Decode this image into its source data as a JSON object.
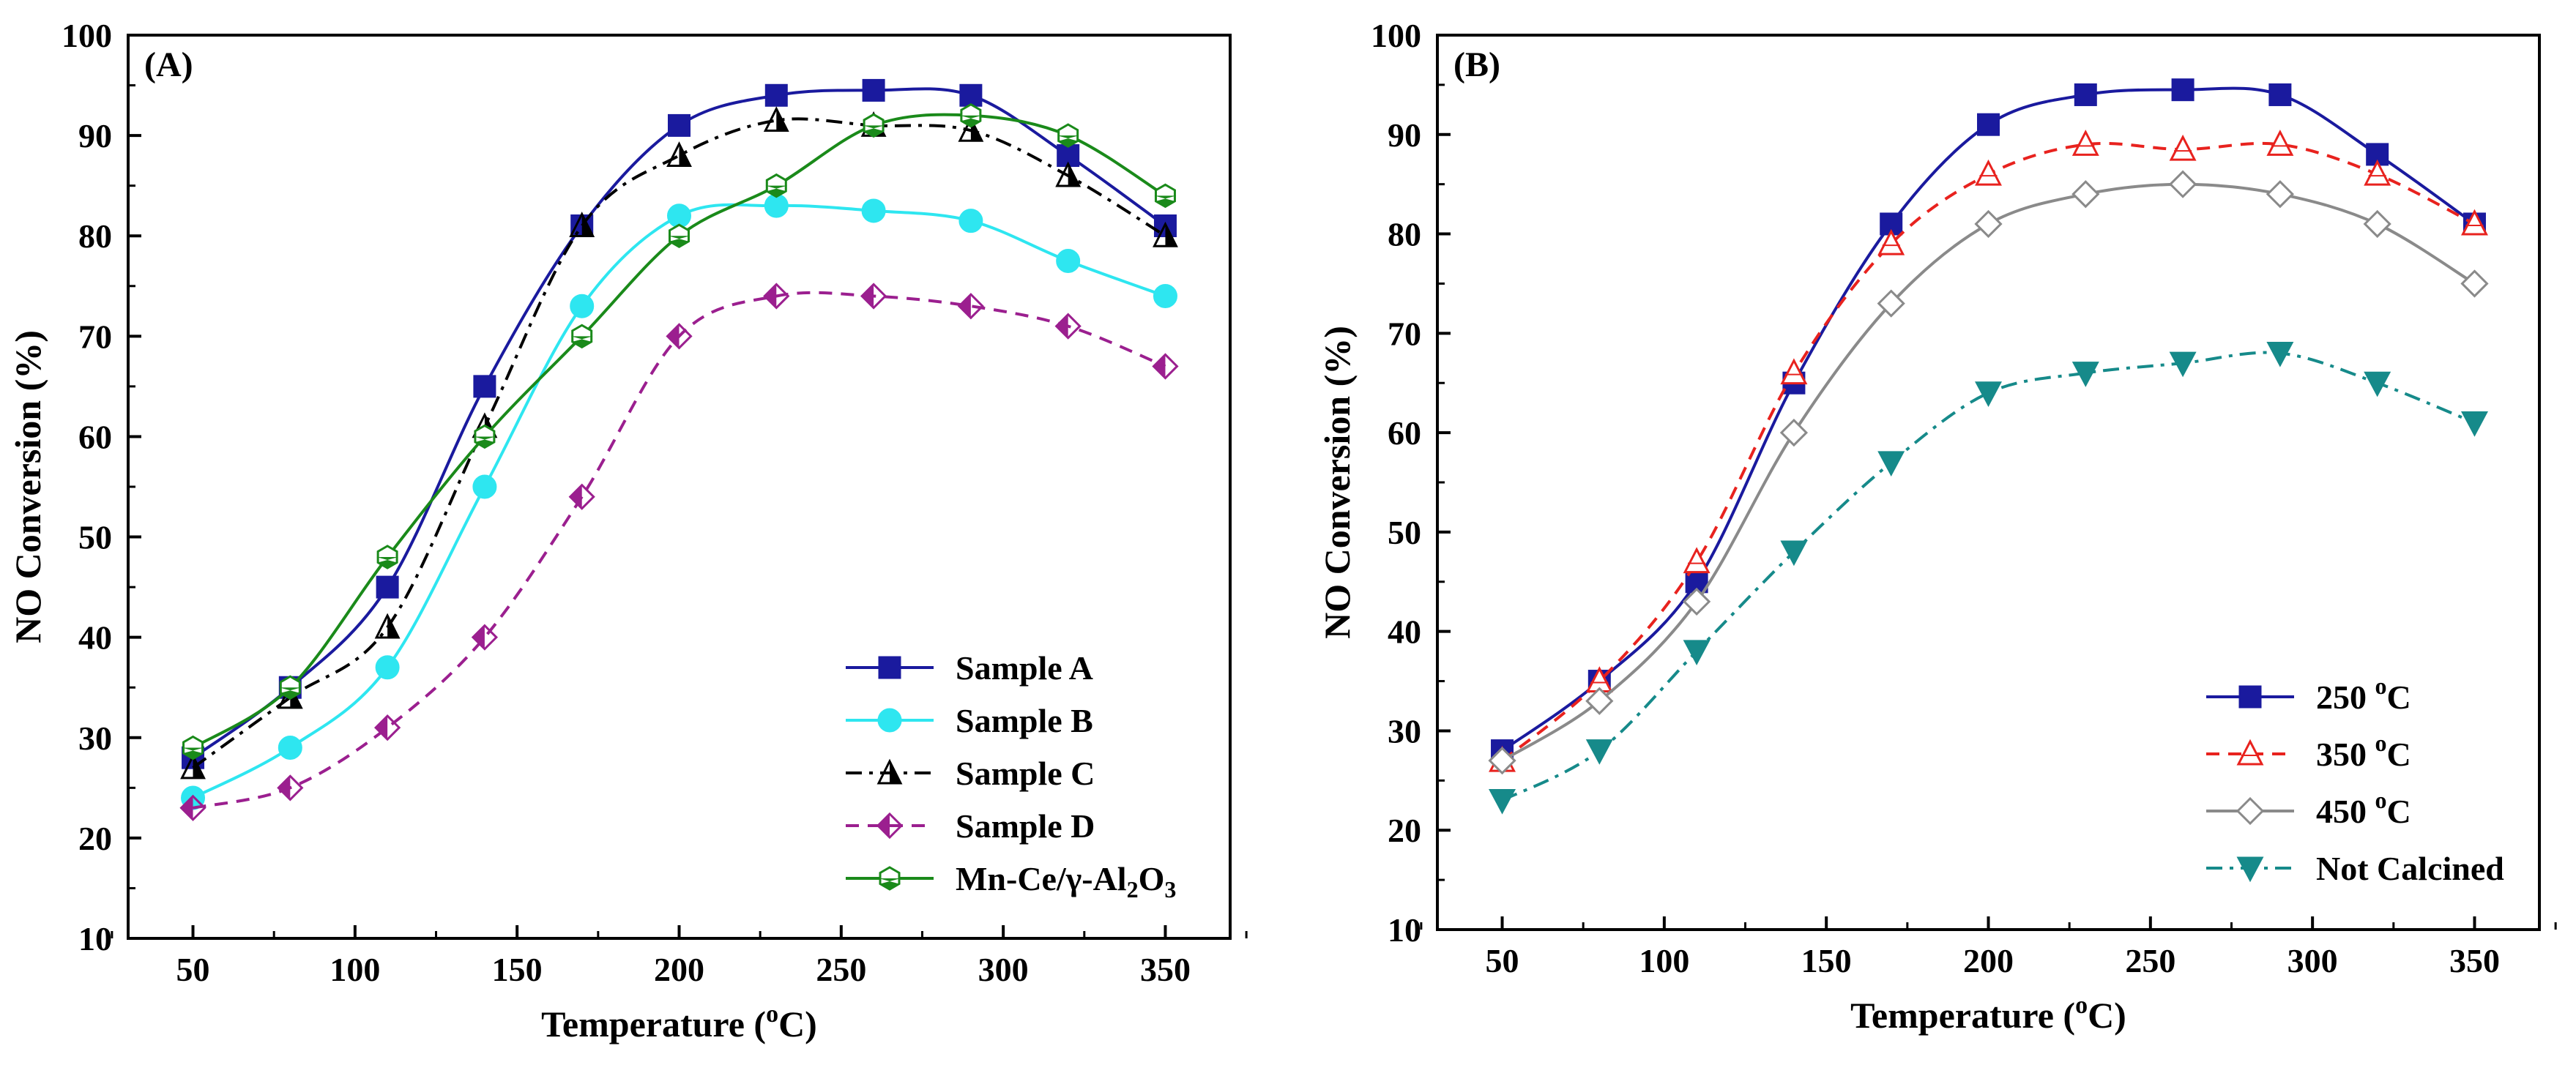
{
  "chart_data": [
    {
      "type": "line",
      "panel_label": "(A)",
      "title": "",
      "xlabel": "Temperature (",
      "xlabel_sup": "o",
      "xlabel_end": "C)",
      "ylabel": "NO Conversion (%)",
      "xlim": [
        30,
        370
      ],
      "ylim": [
        10,
        100
      ],
      "xticks": [
        50,
        100,
        150,
        200,
        250,
        300,
        350
      ],
      "yticks": [
        10,
        20,
        30,
        40,
        50,
        60,
        70,
        80,
        90,
        100
      ],
      "legend_position": "bottom-right",
      "x": [
        50,
        80,
        110,
        140,
        170,
        200,
        230,
        260,
        290,
        320,
        350
      ],
      "series": [
        {
          "name": "Sample A",
          "legend_parts": [
            "Sample A"
          ],
          "color": "#1a1a9e",
          "dash": "",
          "marker": "square",
          "values": [
            28,
            35,
            45,
            65,
            81,
            91,
            94,
            94.5,
            94,
            88,
            81
          ]
        },
        {
          "name": "Sample B",
          "legend_parts": [
            "Sample B"
          ],
          "color": "#2ee6f0",
          "dash": "",
          "marker": "circle",
          "values": [
            24,
            29,
            37,
            55,
            73,
            82,
            83,
            82.5,
            81.5,
            77.5,
            74
          ]
        },
        {
          "name": "Sample C",
          "legend_parts": [
            "Sample C"
          ],
          "color": "#000000",
          "dash": "22 10 5 10",
          "marker": "half-triangle",
          "values": [
            27,
            34,
            41,
            61,
            81,
            88,
            91.5,
            91,
            90.5,
            86,
            80
          ]
        },
        {
          "name": "Sample D",
          "legend_parts": [
            "Sample D"
          ],
          "color": "#9b1f8f",
          "dash": "18 12",
          "marker": "half-diamond",
          "values": [
            23,
            25,
            31,
            40,
            54,
            70,
            74,
            74,
            73,
            71,
            67
          ]
        },
        {
          "name": "Mn-Ce/γ-Al2O3",
          "legend_parts": [
            "Mn-Ce/γ-Al",
            "2",
            "O",
            "3"
          ],
          "color": "#1a8a1a",
          "dash": "",
          "marker": "half-hexagon",
          "values": [
            29,
            35,
            48,
            60,
            70,
            80,
            85,
            91,
            92,
            90,
            84
          ]
        }
      ]
    },
    {
      "type": "line",
      "panel_label": "(B)",
      "title": "",
      "xlabel": "Temperature (",
      "xlabel_sup": "o",
      "xlabel_end": "C)",
      "ylabel": "NO Conversion (%)",
      "xlim": [
        30,
        370
      ],
      "ylim": [
        10,
        100
      ],
      "xticks": [
        50,
        100,
        150,
        200,
        250,
        300,
        350
      ],
      "yticks": [
        10,
        20,
        30,
        40,
        50,
        60,
        70,
        80,
        90,
        100
      ],
      "legend_position": "bottom-right",
      "x": [
        50,
        80,
        110,
        140,
        170,
        200,
        230,
        260,
        290,
        320,
        350
      ],
      "series": [
        {
          "name": "250 oC",
          "legend_parts": [
            "250 ",
            "o",
            "C"
          ],
          "color": "#1a1a9e",
          "dash": "",
          "marker": "square",
          "values": [
            28,
            35,
            45,
            65,
            81,
            91,
            94,
            94.5,
            94,
            88,
            81
          ]
        },
        {
          "name": "350 oC",
          "legend_parts": [
            "350 ",
            "o",
            "C"
          ],
          "color": "#e8221e",
          "dash": "18 12",
          "marker": "open-triangle",
          "values": [
            27,
            35,
            47,
            66,
            79,
            86,
            89,
            88.5,
            89,
            86,
            81
          ]
        },
        {
          "name": "450 oC",
          "legend_parts": [
            "450 ",
            "o",
            "C"
          ],
          "color": "#8a8a8a",
          "dash": "",
          "marker": "open-diamond",
          "values": [
            27,
            33,
            43,
            60,
            73,
            81,
            84,
            85,
            84,
            81,
            75
          ]
        },
        {
          "name": "Not Calcined",
          "legend_parts": [
            "Not Calcined"
          ],
          "color": "#168a8a",
          "dash": "22 10 5 10",
          "marker": "down-triangle",
          "values": [
            23,
            28,
            38,
            48,
            57,
            64,
            66,
            67,
            68,
            65,
            61
          ]
        }
      ]
    }
  ]
}
